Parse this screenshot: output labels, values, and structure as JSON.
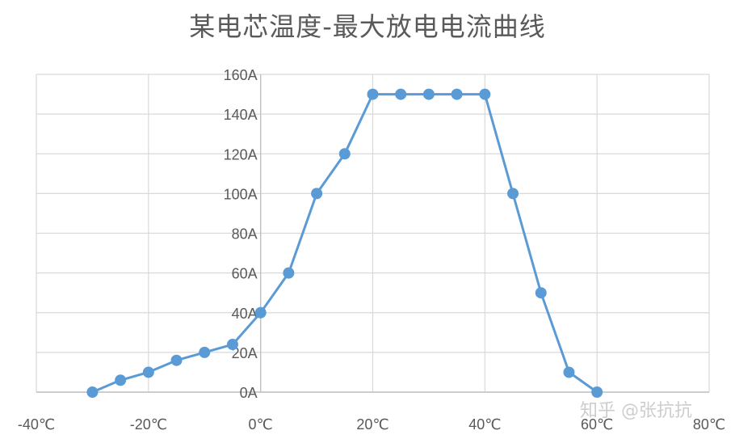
{
  "chart_data": {
    "type": "scatter",
    "title": "某电芯温度-最大放电电流曲线",
    "xlabel": "",
    "ylabel": "",
    "xlim": [
      -40,
      80
    ],
    "ylim": [
      0,
      160
    ],
    "x_ticks": [
      -40,
      -20,
      0,
      20,
      40,
      60,
      80
    ],
    "y_ticks": [
      0,
      20,
      40,
      60,
      80,
      100,
      120,
      140,
      160
    ],
    "x_tick_labels": [
      "-40℃",
      "-20℃",
      "0℃",
      "20℃",
      "40℃",
      "60℃",
      "80℃"
    ],
    "y_tick_labels": [
      "0A",
      "20A",
      "40A",
      "60A",
      "80A",
      "100A",
      "120A",
      "140A",
      "160A"
    ],
    "grid": true,
    "legend": "none",
    "line_color": "#5b9bd5",
    "series": [
      {
        "x": [
          -30,
          -25,
          -20,
          -15,
          -10,
          -5,
          0,
          5,
          10,
          15,
          20,
          25,
          30,
          35,
          40,
          45,
          50,
          55,
          60
        ],
        "y": [
          0,
          6,
          10,
          16,
          20,
          24,
          40,
          60,
          100,
          120,
          150,
          150,
          150,
          150,
          150,
          100,
          50,
          10,
          0
        ]
      }
    ]
  },
  "watermark": "知乎 @张抗抗"
}
